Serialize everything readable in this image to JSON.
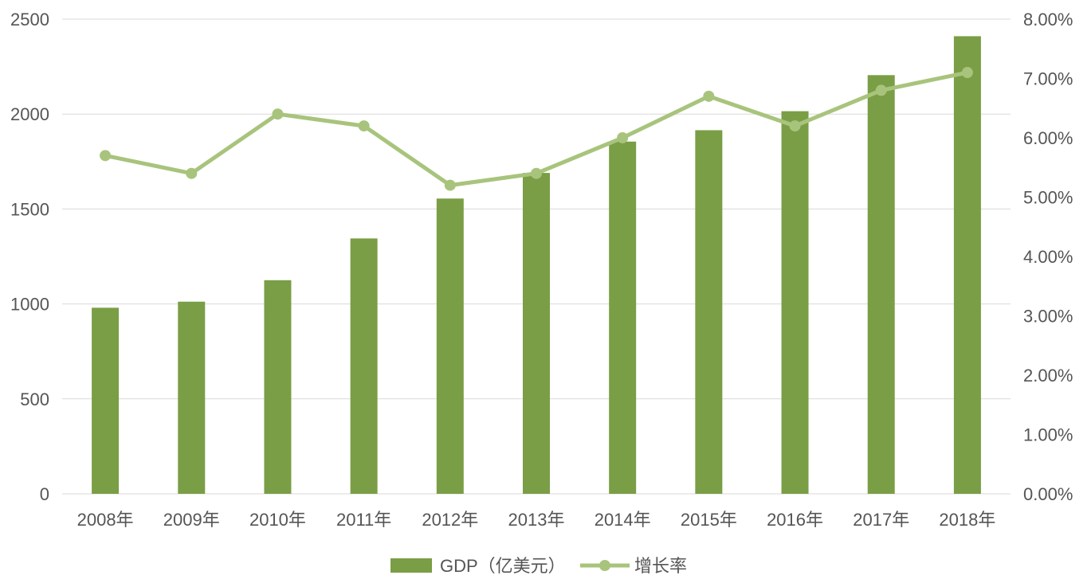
{
  "chart_data": {
    "type": "bar",
    "categories": [
      "2008年",
      "2009年",
      "2010年",
      "2011年",
      "2012年",
      "2013年",
      "2014年",
      "2015年",
      "2016年",
      "2017年",
      "2018年"
    ],
    "series": [
      {
        "name": "GDP（亿美元）",
        "type": "bar",
        "axis": "left",
        "values": [
          980,
          1012,
          1125,
          1345,
          1555,
          1690,
          1855,
          1915,
          2015,
          2205,
          2410
        ]
      },
      {
        "name": "增长率",
        "type": "line",
        "axis": "right",
        "values": [
          5.7,
          5.4,
          6.4,
          6.2,
          5.2,
          5.4,
          6.0,
          6.7,
          6.2,
          6.8,
          7.1
        ]
      }
    ],
    "y_left": {
      "ylim": [
        0,
        2500
      ],
      "ticks": [
        0,
        500,
        1000,
        1500,
        2000,
        2500
      ]
    },
    "y_right": {
      "ylim": [
        0,
        8
      ],
      "ticks": [
        "0.00%",
        "1.00%",
        "2.00%",
        "3.00%",
        "4.00%",
        "5.00%",
        "6.00%",
        "7.00%",
        "8.00%"
      ]
    },
    "grid": true,
    "legend": "bottom",
    "colors": {
      "bar": "#7a9e45",
      "line": "#a8c47c",
      "grid": "#d9d9d9",
      "text": "#555555"
    }
  }
}
